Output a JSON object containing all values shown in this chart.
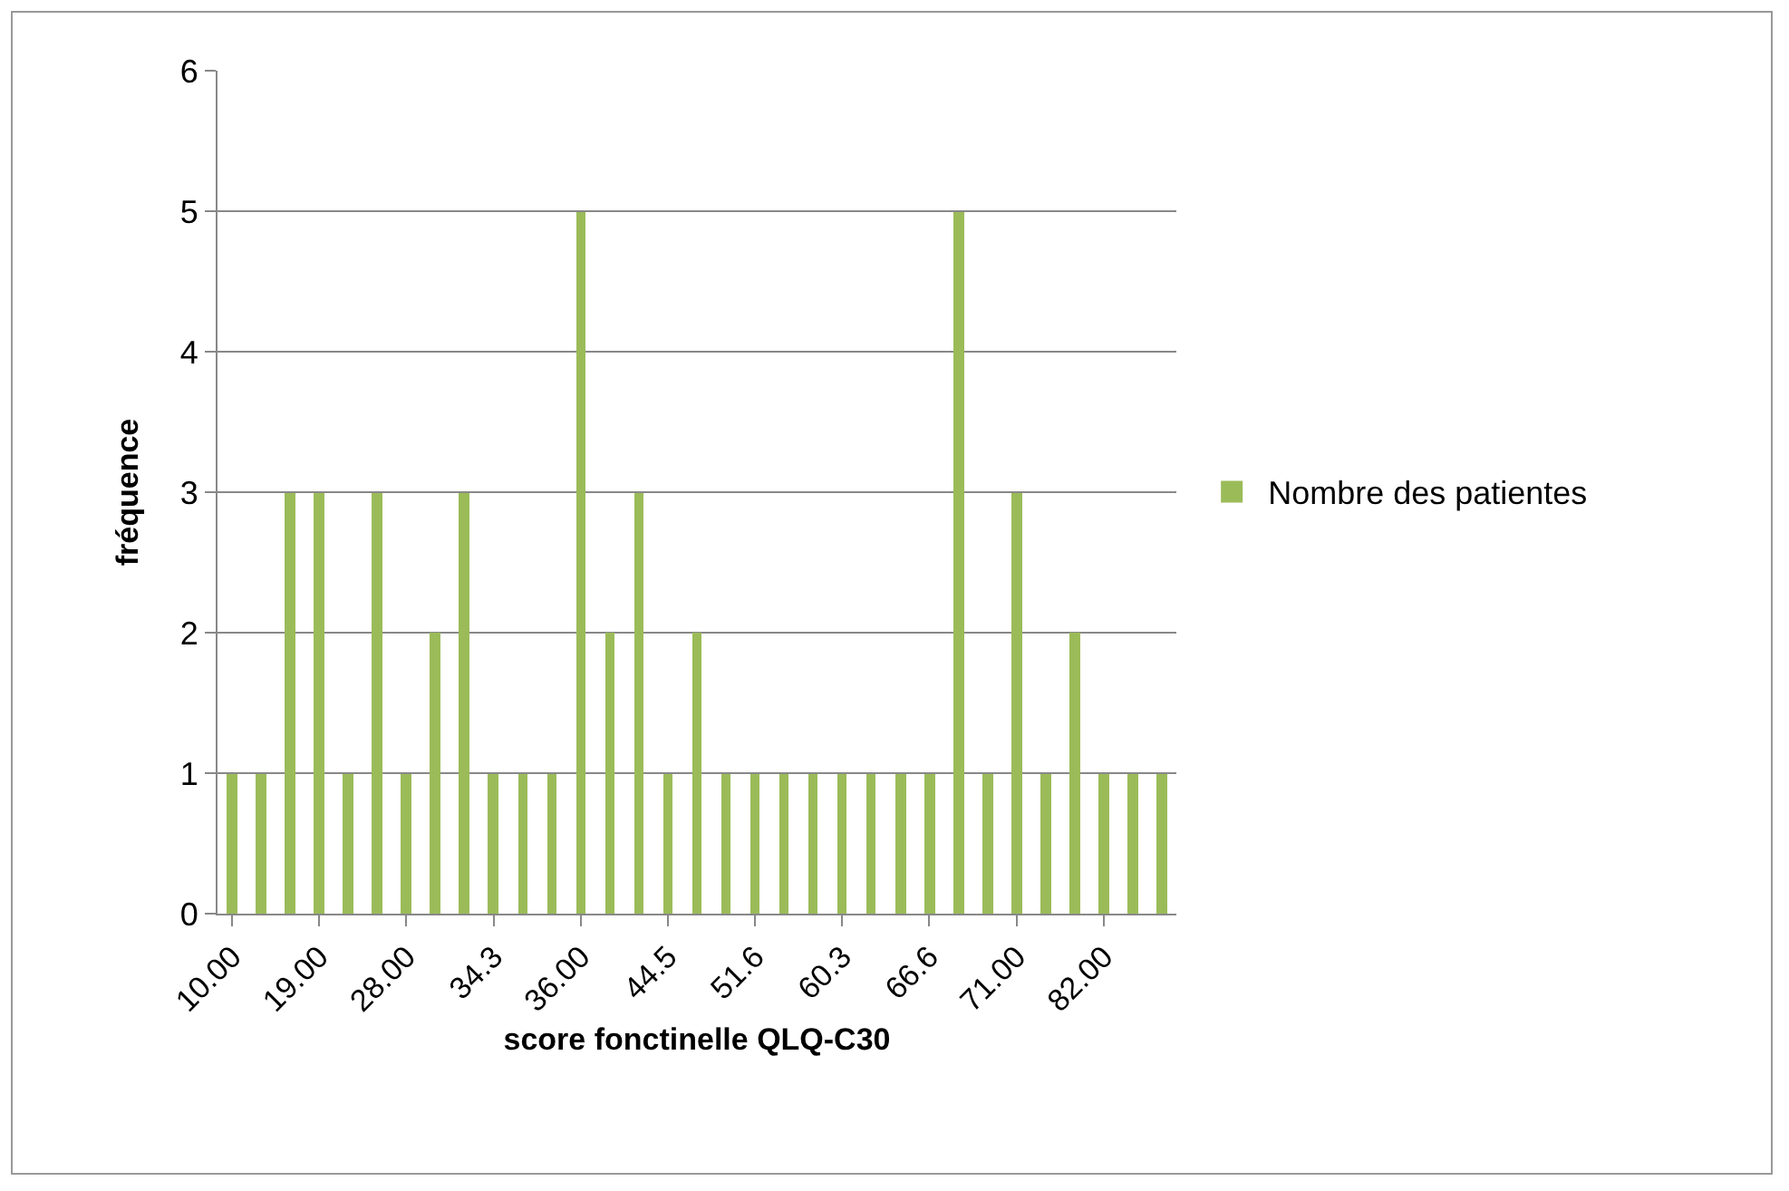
{
  "chart_data": {
    "type": "bar",
    "xlabel": "score fonctinelle QLQ-C30",
    "ylabel": "fréquence",
    "categories": [
      "10.00",
      null,
      null,
      "19.00",
      null,
      null,
      "28.00",
      null,
      null,
      "34.3",
      null,
      null,
      "36.00",
      null,
      null,
      "44.5",
      null,
      null,
      "51.6",
      null,
      null,
      "60.3",
      null,
      null,
      "66.6",
      null,
      null,
      "71.00",
      null,
      null,
      "82.00",
      null,
      null
    ],
    "series": [
      {
        "name": "Nombre des patientes",
        "color": "#9bbb59",
        "values": [
          1,
          1,
          3,
          3,
          1,
          3,
          1,
          2,
          3,
          1,
          1,
          1,
          5,
          2,
          3,
          1,
          2,
          1,
          1,
          1,
          1,
          1,
          1,
          1,
          1,
          5,
          1,
          3,
          1,
          2,
          1,
          1,
          1
        ]
      }
    ],
    "ylim": [
      0,
      6
    ],
    "yticks": [
      0,
      1,
      2,
      3,
      4,
      5,
      6
    ],
    "grid": "y",
    "legend": "right"
  }
}
